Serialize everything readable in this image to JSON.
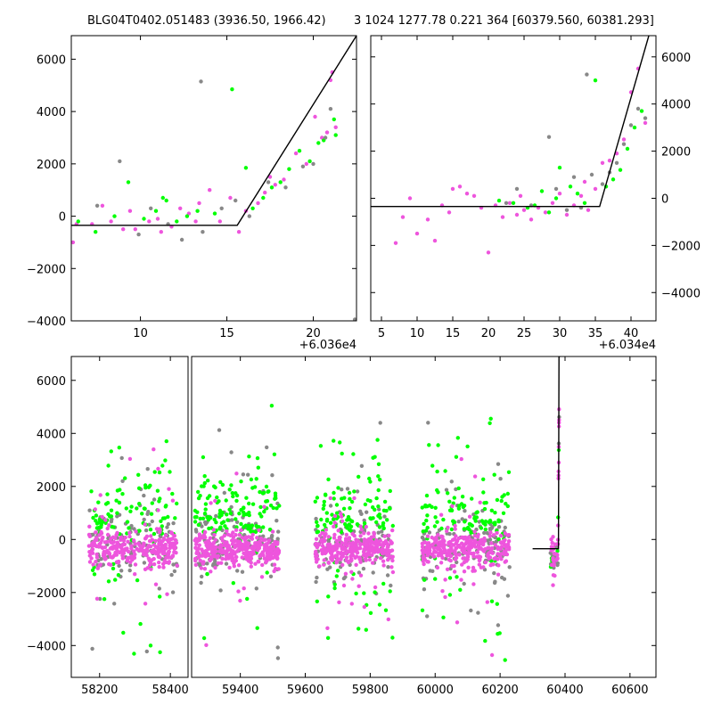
{
  "header": {
    "title_left": "BLG04T0402.051483 (3936.50, 1966.42)",
    "title_right": "3 1024 1277.78 0.221 364 [60379.560, 60381.293]"
  },
  "colors": {
    "green": "#00ff00",
    "magenta": "#ee55dd",
    "gray": "#888888",
    "line": "#000000"
  },
  "chart_data": [
    {
      "type": "scatter",
      "panel": "top-left",
      "xlim": [
        6.0,
        22.5
      ],
      "ylim": [
        -4000,
        6900
      ],
      "xticks": [
        10,
        15,
        20
      ],
      "yticks": [
        -4000,
        -2000,
        0,
        2000,
        4000,
        6000
      ],
      "xtick_labels": [
        "10",
        "15",
        "20"
      ],
      "ytick_labels": [
        "−4000",
        "−2000",
        "0",
        "2000",
        "4000",
        "6000"
      ],
      "y_axis_side": "left",
      "offset_label": "+6.036e4",
      "model_line": {
        "x": [
          6.0,
          15.6,
          22.5
        ],
        "y": [
          -350,
          -350,
          6900
        ]
      },
      "series": [
        {
          "color": "magenta",
          "points": [
            [
              6.1,
              -1000
            ],
            [
              6.3,
              -300
            ],
            [
              7.2,
              -300
            ],
            [
              7.8,
              400
            ],
            [
              8.3,
              -200
            ],
            [
              9.0,
              -500
            ],
            [
              9.7,
              -500
            ],
            [
              10.5,
              -200
            ],
            [
              11.2,
              -600
            ],
            [
              11.8,
              -400
            ],
            [
              12.3,
              300
            ],
            [
              12.8,
              100
            ],
            [
              13.4,
              500
            ],
            [
              14.0,
              1000
            ],
            [
              14.6,
              -200
            ],
            [
              15.2,
              700
            ],
            [
              15.7,
              -600
            ],
            [
              16.1,
              200
            ],
            [
              16.8,
              500
            ],
            [
              17.2,
              900
            ],
            [
              17.8,
              1200
            ],
            [
              18.3,
              1400
            ],
            [
              19.0,
              2400
            ],
            [
              19.6,
              2000
            ],
            [
              20.1,
              3800
            ],
            [
              20.5,
              3000
            ],
            [
              20.8,
              3200
            ],
            [
              21.0,
              5200
            ],
            [
              21.1,
              5500
            ],
            [
              21.3,
              3400
            ],
            [
              13.2,
              -200
            ],
            [
              11.0,
              -100
            ],
            [
              9.4,
              200
            ],
            [
              17.5,
              1500
            ]
          ]
        },
        {
          "color": "green",
          "points": [
            [
              6.4,
              -200
            ],
            [
              7.4,
              -600
            ],
            [
              8.5,
              0
            ],
            [
              9.3,
              1300
            ],
            [
              10.2,
              -100
            ],
            [
              10.9,
              200
            ],
            [
              11.5,
              600
            ],
            [
              12.1,
              -200
            ],
            [
              12.7,
              0
            ],
            [
              13.3,
              200
            ],
            [
              15.3,
              4850
            ],
            [
              16.1,
              1850
            ],
            [
              16.5,
              300
            ],
            [
              17.1,
              700
            ],
            [
              17.6,
              1100
            ],
            [
              18.1,
              1300
            ],
            [
              18.6,
              1800
            ],
            [
              19.2,
              2500
            ],
            [
              19.8,
              2100
            ],
            [
              20.3,
              2800
            ],
            [
              20.6,
              2900
            ],
            [
              21.2,
              3700
            ],
            [
              21.3,
              3100
            ],
            [
              11.3,
              700
            ],
            [
              14.3,
              100
            ]
          ]
        },
        {
          "color": "gray",
          "points": [
            [
              7.5,
              400
            ],
            [
              8.8,
              2100
            ],
            [
              9.9,
              -700
            ],
            [
              10.6,
              300
            ],
            [
              11.6,
              -300
            ],
            [
              12.4,
              -900
            ],
            [
              13.5,
              5150
            ],
            [
              13.6,
              -600
            ],
            [
              14.7,
              300
            ],
            [
              15.5,
              600
            ],
            [
              16.3,
              0
            ],
            [
              17.4,
              1300
            ],
            [
              18.4,
              1100
            ],
            [
              19.4,
              1900
            ],
            [
              20.0,
              2000
            ],
            [
              20.7,
              3000
            ],
            [
              21.0,
              4100
            ],
            [
              22.4,
              -3950
            ]
          ]
        }
      ]
    },
    {
      "type": "scatter",
      "panel": "top-right",
      "xlim": [
        3.5,
        43.5
      ],
      "ylim": [
        -5200,
        6900
      ],
      "xticks": [
        5,
        10,
        15,
        20,
        25,
        30,
        35,
        40
      ],
      "yticks": [
        -4000,
        -2000,
        0,
        2000,
        4000,
        6000
      ],
      "xtick_labels": [
        "5",
        "10",
        "15",
        "20",
        "25",
        "30",
        "35",
        "40"
      ],
      "ytick_labels": [
        "−4000",
        "−2000",
        "0",
        "2000",
        "4000",
        "6000"
      ],
      "y_axis_side": "right",
      "offset_label": "+6.034e4",
      "model_line": {
        "x": [
          3.5,
          35.6,
          42.5
        ],
        "y": [
          -350,
          -350,
          6900
        ]
      },
      "series": [
        {
          "color": "magenta",
          "points": [
            [
              7.0,
              -1900
            ],
            [
              8.0,
              -800
            ],
            [
              9.0,
              0
            ],
            [
              10.0,
              -1500
            ],
            [
              11.5,
              -900
            ],
            [
              12.5,
              -1800
            ],
            [
              13.5,
              -300
            ],
            [
              14.5,
              -600
            ],
            [
              16.0,
              500
            ],
            [
              17.0,
              200
            ],
            [
              18.0,
              100
            ],
            [
              19.0,
              -400
            ],
            [
              20.0,
              -2300
            ],
            [
              21.0,
              -300
            ],
            [
              22.0,
              -800
            ],
            [
              23.0,
              -200
            ],
            [
              24.0,
              -700
            ],
            [
              25.0,
              -500
            ],
            [
              26.0,
              -900
            ],
            [
              27.0,
              -400
            ],
            [
              28.0,
              -600
            ],
            [
              29.0,
              -200
            ],
            [
              30.0,
              200
            ],
            [
              31.0,
              -700
            ],
            [
              32.0,
              -300
            ],
            [
              33.0,
              100
            ],
            [
              34.0,
              -500
            ],
            [
              35.0,
              400
            ],
            [
              36.0,
              1500
            ],
            [
              37.0,
              1600
            ],
            [
              38.0,
              1900
            ],
            [
              39.0,
              2500
            ],
            [
              40.0,
              4500
            ],
            [
              41.0,
              5500
            ],
            [
              42.0,
              3200
            ],
            [
              15.0,
              400
            ],
            [
              24.5,
              100
            ],
            [
              33.5,
              700
            ]
          ]
        },
        {
          "color": "green",
          "points": [
            [
              21.5,
              -100
            ],
            [
              23.5,
              -200
            ],
            [
              25.5,
              -400
            ],
            [
              27.5,
              300
            ],
            [
              28.5,
              -600
            ],
            [
              30.0,
              1300
            ],
            [
              31.5,
              500
            ],
            [
              32.5,
              200
            ],
            [
              33.5,
              -200
            ],
            [
              35.0,
              5000
            ],
            [
              36.5,
              500
            ],
            [
              37.5,
              800
            ],
            [
              38.5,
              1200
            ],
            [
              39.5,
              2100
            ],
            [
              40.5,
              3000
            ],
            [
              41.5,
              3700
            ],
            [
              26.5,
              -300
            ],
            [
              29.5,
              0
            ]
          ]
        },
        {
          "color": "gray",
          "points": [
            [
              22.5,
              -200
            ],
            [
              24.0,
              400
            ],
            [
              26.0,
              -300
            ],
            [
              28.5,
              2600
            ],
            [
              29.5,
              400
            ],
            [
              31.0,
              -500
            ],
            [
              32.0,
              900
            ],
            [
              33.0,
              -400
            ],
            [
              33.8,
              5250
            ],
            [
              34.5,
              1000
            ],
            [
              36.0,
              600
            ],
            [
              37.0,
              1100
            ],
            [
              38.0,
              1500
            ],
            [
              39.0,
              2300
            ],
            [
              40.0,
              3100
            ],
            [
              41.0,
              3800
            ],
            [
              42.0,
              3400
            ]
          ]
        }
      ]
    },
    {
      "type": "scatter",
      "panel": "bottom",
      "xlim": [
        58120,
        60680
      ],
      "ylim": [
        -5200,
        6900
      ],
      "xticks": [
        58200,
        58400,
        59400,
        59600,
        59800,
        60000,
        60200,
        60400,
        60600
      ],
      "yticks": [
        -4000,
        -2000,
        0,
        2000,
        4000,
        6000
      ],
      "xtick_labels": [
        "58200",
        "58400",
        "59400",
        "59600",
        "59800",
        "60000",
        "60200",
        "60400",
        "60600"
      ],
      "ytick_labels": [
        "−4000",
        "−2000",
        "0",
        "2000",
        "4000",
        "6000"
      ],
      "y_axis_side": "left",
      "axis_break": [
        58450,
        59250
      ],
      "model_line": {
        "x": [
          60300,
          60379.6,
          60381.3,
          60385
        ],
        "y": [
          -350,
          -350,
          6900,
          6900
        ]
      },
      "seasons": [
        {
          "x_range": [
            58170,
            58420
          ],
          "n": 520
        },
        {
          "x_range": [
            59260,
            59520
          ],
          "n": 620
        },
        {
          "x_range": [
            59630,
            59870
          ],
          "n": 560
        },
        {
          "x_range": [
            59960,
            60230
          ],
          "n": 560
        },
        {
          "x_range": [
            60355,
            60382
          ],
          "n": 60
        }
      ],
      "series_colors": [
        "magenta",
        "green",
        "gray"
      ]
    }
  ]
}
